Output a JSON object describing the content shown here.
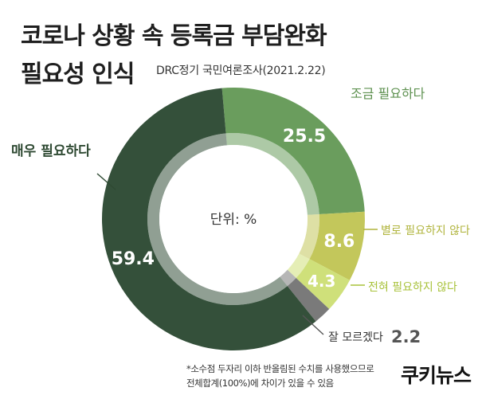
{
  "title_line1": "코로나 상황 속 등록금 부담완화",
  "title_line2": "필요성 인식",
  "source": "DRC정기 국민여론조사(2021.2.22)",
  "center_label": "단위: %",
  "footnote_line1": "*소수점 두자리 이하 반올림된 수치를 사용했으므로",
  "footnote_line2": "전체합계(100%)에 차이가 있을 수 있음",
  "logo": "쿠키뉴스",
  "colors": {
    "very_needed": "#34503a",
    "somewhat_needed": "#6a9d5d",
    "not_very_needed": "#c3c75b",
    "not_needed": "#cfe07a",
    "dont_know": "#7a7a7a"
  },
  "chart_data": {
    "type": "pie",
    "title": "코로나 상황 속 등록금 부담완화 필요성 인식",
    "unit": "%",
    "categories": [
      "조금 필요하다",
      "별로 필요하지 않다",
      "전혀 필요하지 않다",
      "잘 모르겠다",
      "매우 필요하다"
    ],
    "values": [
      25.5,
      8.6,
      4.3,
      2.2,
      59.4
    ],
    "value_labels": [
      "25.5",
      "8.6",
      "4.3",
      "2.2",
      "59.4"
    ],
    "colors": [
      "#6a9d5d",
      "#c3c75b",
      "#cfe07a",
      "#7a7a7a",
      "#34503a"
    ],
    "label_colors": [
      "#5e9150",
      "#b0b43c",
      "#a8c23a",
      "#333333",
      "#2f4a33"
    ]
  }
}
